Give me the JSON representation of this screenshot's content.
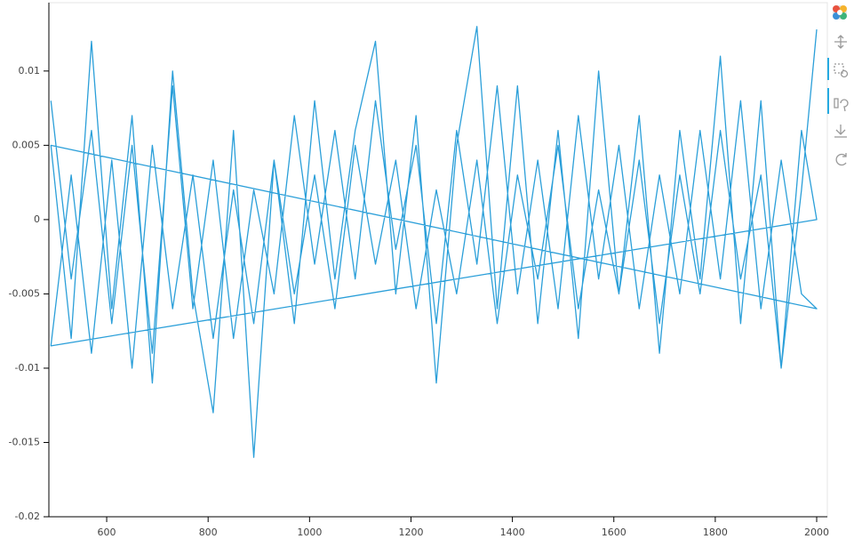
{
  "chart_data": {
    "type": "line",
    "x": [
      490,
      530,
      570,
      610,
      650,
      690,
      730,
      770,
      810,
      850,
      890,
      930,
      970,
      1010,
      1050,
      1090,
      1130,
      1170,
      1210,
      1250,
      1290,
      1330,
      1370,
      1410,
      1450,
      1490,
      1530,
      1570,
      1610,
      1650,
      1690,
      1730,
      1770,
      1810,
      1850,
      1890,
      1930,
      1970,
      2000,
      490,
      530,
      570,
      610,
      650,
      690,
      730,
      770,
      810,
      850,
      890,
      930,
      970,
      1010,
      1050,
      1090,
      1130,
      1170,
      1210,
      1250,
      1290,
      1330,
      1370,
      1410,
      1450,
      1490,
      1530,
      1570,
      1610,
      1650,
      1690,
      1730,
      1770,
      1810,
      1850,
      1890,
      1930,
      1970,
      2000,
      490,
      530,
      570,
      610,
      650,
      690,
      730,
      770,
      810,
      850,
      890,
      930,
      970,
      1010,
      1050,
      1090,
      1130,
      1170,
      1210,
      1250,
      1290,
      1330,
      1370,
      1410,
      1450,
      1490,
      1530,
      1570,
      1610,
      1650,
      1690,
      1730,
      1770,
      1810,
      1850,
      1890,
      1930,
      1970,
      2000
    ],
    "series": [
      {
        "color": "#2b9fd9",
        "values": [
          0.008,
          -0.004,
          0.006,
          -0.007,
          0.005,
          -0.009,
          0.009,
          -0.006,
          0.004,
          -0.008,
          0.002,
          -0.005,
          0.007,
          -0.003,
          0.006,
          -0.004,
          0.008,
          -0.002,
          0.005,
          -0.007,
          0.006,
          -0.003,
          0.009,
          -0.005,
          0.004,
          -0.006,
          0.007,
          -0.004,
          0.005,
          -0.006,
          0.003,
          -0.005,
          0.006,
          -0.004,
          0.008,
          -0.006,
          0.004,
          -0.005,
          -0.006,
          0.005,
          -0.008,
          0.012,
          -0.006,
          0.007,
          -0.011,
          0.01,
          -0.005,
          -0.013,
          0.006,
          -0.016,
          0.004,
          -0.007,
          0.008,
          -0.004,
          0.006,
          0.012,
          -0.005,
          0.007,
          -0.011,
          0.005,
          0.013,
          -0.006,
          0.009,
          -0.007,
          0.006,
          -0.008,
          0.01,
          -0.005,
          0.007,
          -0.009,
          0.006,
          -0.004,
          0.011,
          -0.007,
          0.008,
          -0.01,
          0.006,
          0.0,
          -0.0085,
          0.003,
          -0.009,
          0.004,
          -0.01,
          0.005,
          -0.006,
          0.003,
          -0.008,
          0.002,
          -0.007,
          0.004,
          -0.005,
          0.003,
          -0.006,
          0.005,
          -0.003,
          0.004,
          -0.006,
          0.002,
          -0.005,
          0.004,
          -0.007,
          0.003,
          -0.004,
          0.005,
          -0.006,
          0.002,
          -0.005,
          0.004,
          -0.007,
          0.003,
          -0.005,
          0.006,
          -0.004,
          0.003,
          -0.01,
          0.002,
          0.0128
        ]
      }
    ],
    "xlim": [
      486,
      2021
    ],
    "ylim": [
      -0.02,
      0.0146
    ],
    "xticks": [
      600,
      800,
      1000,
      1200,
      1400,
      1600,
      1800,
      2000
    ],
    "yticks": [
      -0.02,
      -0.015,
      -0.01,
      -0.005,
      0,
      0.005,
      0.01
    ],
    "grid": false
  }
}
